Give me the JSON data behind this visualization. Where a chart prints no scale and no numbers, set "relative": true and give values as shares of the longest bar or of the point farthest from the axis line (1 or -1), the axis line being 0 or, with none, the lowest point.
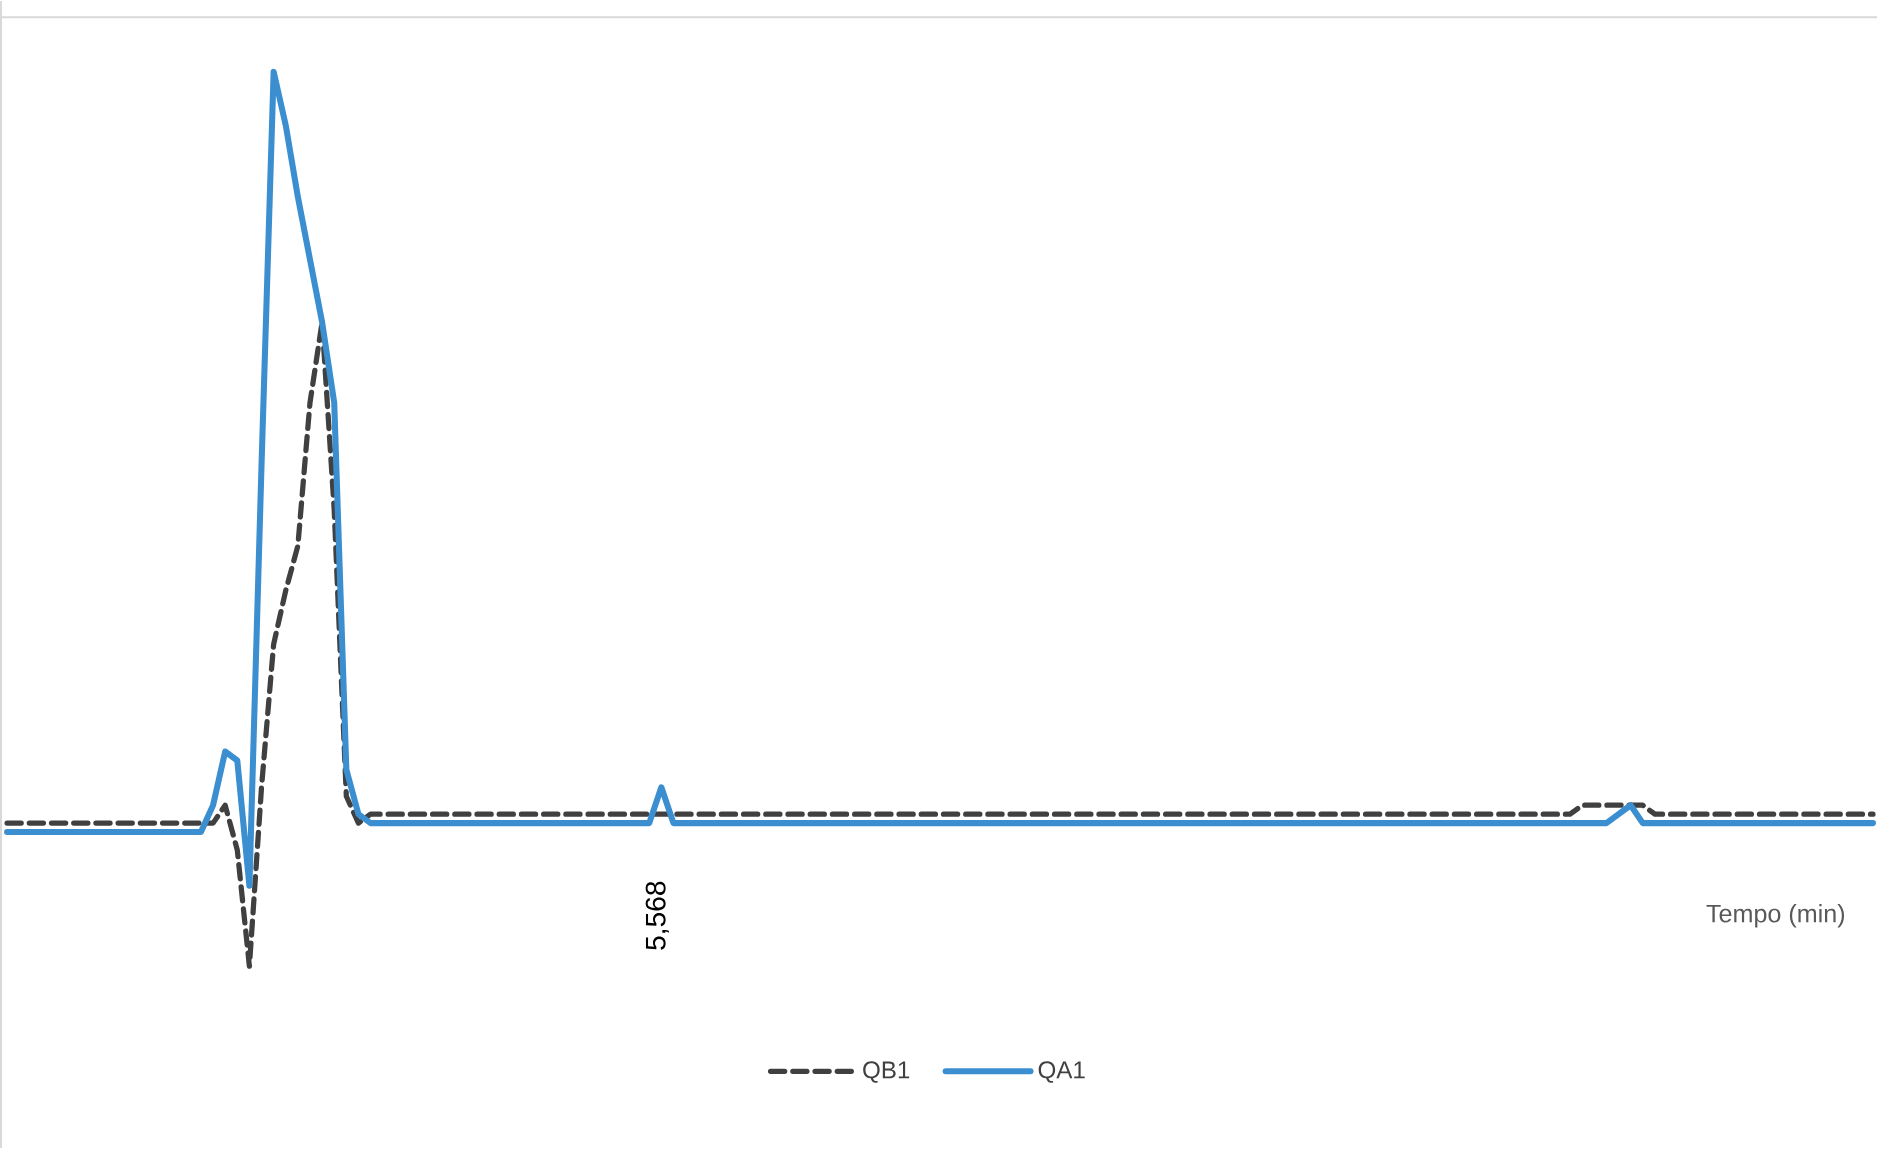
{
  "chart_data": {
    "type": "line",
    "relative": true,
    "xlabel": "Tempo (min)",
    "annotations": [
      "5,568"
    ],
    "legend": "bottom",
    "marker": "none",
    "categories": [
      null,
      null,
      null,
      null,
      null,
      null,
      null,
      null,
      null,
      null,
      null,
      null,
      null,
      null,
      null,
      null,
      null,
      null,
      null,
      null,
      null,
      null,
      null,
      null,
      null,
      null,
      null,
      null,
      null,
      null,
      null,
      null,
      null,
      null,
      null,
      null,
      null,
      null,
      null,
      null,
      null,
      null,
      null,
      null,
      null,
      null,
      null,
      null,
      null,
      null,
      null,
      null,
      null,
      null,
      null,
      null,
      null,
      null,
      null,
      null,
      null,
      null,
      null,
      null,
      null,
      null,
      null,
      null,
      null,
      null,
      null,
      null,
      null,
      null,
      null,
      null,
      null,
      null,
      null,
      null,
      null,
      null,
      null,
      null,
      null,
      null,
      null,
      null,
      null,
      null,
      null,
      null,
      null,
      null,
      null,
      null,
      null,
      null,
      null,
      null,
      null,
      null,
      null,
      null,
      null,
      null,
      null,
      null,
      null,
      null,
      null,
      null,
      null,
      null,
      null,
      null,
      null,
      null,
      null,
      null,
      null,
      null,
      null,
      null,
      null,
      null,
      null,
      null,
      null,
      null,
      null,
      null,
      null,
      null,
      null,
      null,
      null,
      null,
      null,
      null,
      null,
      null,
      null,
      null,
      null,
      null,
      null,
      null,
      null,
      null,
      null,
      null,
      null,
      null,
      null
    ],
    "series": [
      {
        "name": "QB1",
        "color": "#404040",
        "line_style": "dashed",
        "values": [
          0.16,
          0.16,
          0.16,
          0.16,
          0.16,
          0.16,
          0.16,
          0.16,
          0.16,
          0.16,
          0.16,
          0.16,
          0.16,
          0.16,
          0.16,
          0.16,
          0.16,
          0.16,
          0.18,
          0.13,
          0.0,
          0.2,
          0.36,
          0.42,
          0.47,
          0.63,
          0.72,
          0.51,
          0.19,
          0.16,
          0.17,
          0.17,
          0.17,
          0.17,
          0.17,
          0.17,
          0.17,
          0.17,
          0.17,
          0.17,
          0.17,
          0.17,
          0.17,
          0.17,
          0.17,
          0.17,
          0.17,
          0.17,
          0.17,
          0.17,
          0.17,
          0.17,
          0.17,
          0.17,
          0.17,
          0.17,
          0.17,
          0.17,
          0.17,
          0.17,
          0.17,
          0.17,
          0.17,
          0.17,
          0.17,
          0.17,
          0.17,
          0.17,
          0.17,
          0.17,
          0.17,
          0.17,
          0.17,
          0.17,
          0.17,
          0.17,
          0.17,
          0.17,
          0.17,
          0.17,
          0.17,
          0.17,
          0.17,
          0.17,
          0.17,
          0.17,
          0.17,
          0.17,
          0.17,
          0.17,
          0.17,
          0.17,
          0.17,
          0.17,
          0.17,
          0.17,
          0.17,
          0.17,
          0.17,
          0.17,
          0.17,
          0.17,
          0.17,
          0.17,
          0.17,
          0.17,
          0.17,
          0.17,
          0.17,
          0.17,
          0.17,
          0.17,
          0.17,
          0.17,
          0.17,
          0.17,
          0.17,
          0.17,
          0.17,
          0.17,
          0.17,
          0.17,
          0.17,
          0.17,
          0.17,
          0.17,
          0.17,
          0.17,
          0.17,
          0.17,
          0.18,
          0.18,
          0.18,
          0.18,
          0.18,
          0.18,
          0.17,
          0.17,
          0.17,
          0.17,
          0.17,
          0.17,
          0.17,
          0.17,
          0.17,
          0.17,
          0.17,
          0.17,
          0.17,
          0.17,
          0.17,
          0.17,
          0.17,
          0.17,
          0.17
        ]
      },
      {
        "name": "QA1",
        "color": "#3b8fd0",
        "line_style": "solid",
        "values": [
          0.15,
          0.15,
          0.15,
          0.15,
          0.15,
          0.15,
          0.15,
          0.15,
          0.15,
          0.15,
          0.15,
          0.15,
          0.15,
          0.15,
          0.15,
          0.15,
          0.15,
          0.18,
          0.24,
          0.23,
          0.09,
          0.56,
          1.0,
          0.94,
          0.86,
          0.79,
          0.72,
          0.63,
          0.22,
          0.17,
          0.16,
          0.16,
          0.16,
          0.16,
          0.16,
          0.16,
          0.16,
          0.16,
          0.16,
          0.16,
          0.16,
          0.16,
          0.16,
          0.16,
          0.16,
          0.16,
          0.16,
          0.16,
          0.16,
          0.16,
          0.16,
          0.16,
          0.16,
          0.16,
          0.2,
          0.16,
          0.16,
          0.16,
          0.16,
          0.16,
          0.16,
          0.16,
          0.16,
          0.16,
          0.16,
          0.16,
          0.16,
          0.16,
          0.16,
          0.16,
          0.16,
          0.16,
          0.16,
          0.16,
          0.16,
          0.16,
          0.16,
          0.16,
          0.16,
          0.16,
          0.16,
          0.16,
          0.16,
          0.16,
          0.16,
          0.16,
          0.16,
          0.16,
          0.16,
          0.16,
          0.16,
          0.16,
          0.16,
          0.16,
          0.16,
          0.16,
          0.16,
          0.16,
          0.16,
          0.16,
          0.16,
          0.16,
          0.16,
          0.16,
          0.16,
          0.16,
          0.16,
          0.16,
          0.16,
          0.16,
          0.16,
          0.16,
          0.16,
          0.16,
          0.16,
          0.16,
          0.16,
          0.16,
          0.16,
          0.16,
          0.16,
          0.16,
          0.16,
          0.16,
          0.16,
          0.16,
          0.16,
          0.16,
          0.16,
          0.16,
          0.16,
          0.16,
          0.16,
          0.17,
          0.18,
          0.16,
          0.16,
          0.16,
          0.16,
          0.16,
          0.16,
          0.16,
          0.16,
          0.16,
          0.16,
          0.16,
          0.16,
          0.16,
          0.16,
          0.16,
          0.16,
          0.16,
          0.16,
          0.16,
          0.16
        ]
      }
    ]
  }
}
